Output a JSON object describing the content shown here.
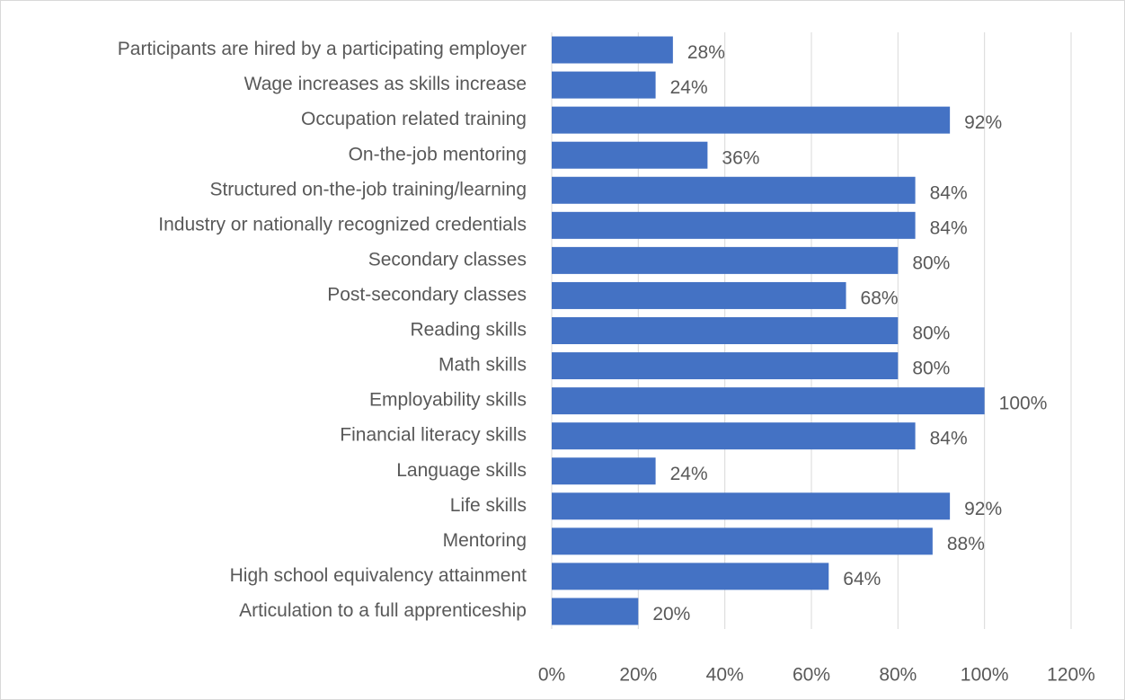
{
  "chart_data": {
    "type": "barh",
    "categories": [
      "Participants are hired by a participating employer",
      "Wage increases as skills increase",
      "Occupation related training",
      "On-the-job mentoring",
      "Structured on-the-job training/learning",
      "Industry or nationally recognized credentials",
      "Secondary classes",
      "Post-secondary classes",
      "Reading skills",
      "Math skills",
      "Employability skills",
      "Financial literacy skills",
      "Language skills",
      "Life skills",
      "Mentoring",
      "High school equivalency attainment",
      "Articulation to a full apprenticeship"
    ],
    "values": [
      28,
      24,
      92,
      36,
      84,
      84,
      80,
      68,
      80,
      80,
      100,
      84,
      24,
      92,
      88,
      64,
      20
    ],
    "value_labels": [
      "28%",
      "24%",
      "92%",
      "36%",
      "84%",
      "84%",
      "80%",
      "68%",
      "80%",
      "80%",
      "100%",
      "84%",
      "24%",
      "92%",
      "88%",
      "64%",
      "20%"
    ],
    "color": "#4472c4",
    "xlim": [
      0,
      120
    ],
    "xticks": [
      {
        "value": 0,
        "label": "0%"
      },
      {
        "value": 20,
        "label": "20%"
      },
      {
        "value": 40,
        "label": "40%"
      },
      {
        "value": 60,
        "label": "60%"
      },
      {
        "value": 80,
        "label": "80%"
      },
      {
        "value": 100,
        "label": "100%"
      },
      {
        "value": 120,
        "label": "120%"
      }
    ],
    "grid": true
  }
}
